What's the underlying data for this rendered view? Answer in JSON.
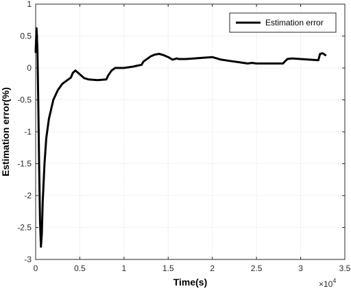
{
  "chart_data": {
    "type": "line",
    "xlabel": "Time(s)",
    "ylabel": "Estimation error(%)",
    "x_multiplier_label": "×10",
    "x_multiplier_exp": "4",
    "xlim": [
      0,
      3.5
    ],
    "ylim": [
      -3,
      1
    ],
    "x_ticks": [
      "0",
      "0.5",
      "1",
      "1.5",
      "2",
      "2.5",
      "3",
      "3.5"
    ],
    "y_ticks": [
      "1",
      "0.5",
      "0",
      "-0.5",
      "-1",
      "-1.5",
      "-2",
      "-2.5",
      "-3"
    ],
    "grid": true,
    "legend_position": "top-right",
    "series": [
      {
        "name": "Estimation error",
        "color": "#000000",
        "x": [
          0.0,
          0.01,
          0.02,
          0.03,
          0.04,
          0.05,
          0.06,
          0.07,
          0.08,
          0.1,
          0.12,
          0.15,
          0.2,
          0.25,
          0.3,
          0.35,
          0.4,
          0.42,
          0.45,
          0.5,
          0.55,
          0.6,
          0.7,
          0.8,
          0.82,
          0.86,
          0.9,
          0.95,
          1.0,
          1.1,
          1.2,
          1.22,
          1.3,
          1.35,
          1.4,
          1.45,
          1.5,
          1.55,
          1.6,
          1.62,
          1.7,
          1.8,
          1.9,
          2.0,
          2.1,
          2.2,
          2.3,
          2.4,
          2.45,
          2.5,
          2.6,
          2.7,
          2.8,
          2.82,
          2.85,
          2.9,
          3.0,
          3.1,
          3.2,
          3.22,
          3.25,
          3.28
        ],
        "y": [
          0.25,
          0.62,
          0.3,
          -0.6,
          -1.6,
          -2.4,
          -2.8,
          -2.6,
          -2.1,
          -1.5,
          -1.1,
          -0.8,
          -0.5,
          -0.35,
          -0.25,
          -0.2,
          -0.15,
          -0.08,
          -0.04,
          -0.1,
          -0.16,
          -0.18,
          -0.19,
          -0.18,
          -0.12,
          -0.04,
          0.0,
          0.0,
          0.0,
          0.02,
          0.05,
          0.1,
          0.18,
          0.21,
          0.22,
          0.2,
          0.17,
          0.13,
          0.15,
          0.14,
          0.14,
          0.15,
          0.16,
          0.17,
          0.13,
          0.11,
          0.09,
          0.07,
          0.08,
          0.07,
          0.07,
          0.07,
          0.07,
          0.1,
          0.14,
          0.15,
          0.14,
          0.13,
          0.12,
          0.22,
          0.23,
          0.2
        ]
      }
    ]
  }
}
